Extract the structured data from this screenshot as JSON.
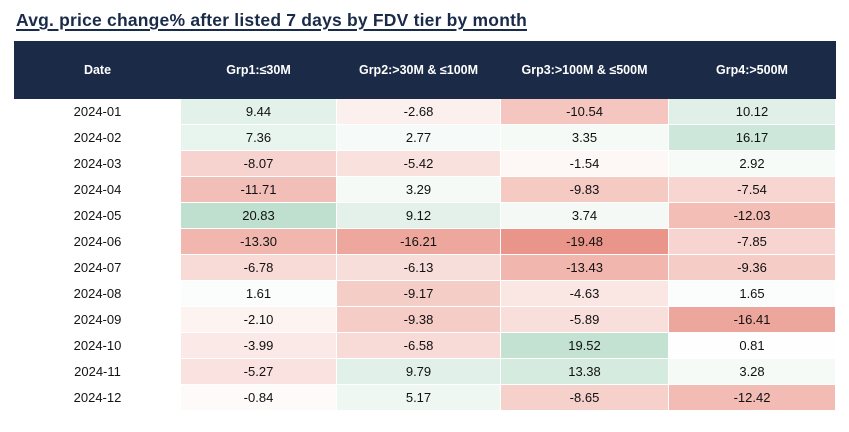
{
  "title": "Avg. price change% after listed 7 days by FDV tier by month",
  "colors": {
    "title_color": "#1a2b49",
    "header_bg": "#1b2a47",
    "header_text": "#ffffff",
    "heat_neutral": "#ffffff",
    "heat_positive_max": "#bfe0cf",
    "heat_negative_max": "#ea9589"
  },
  "chart_data": {
    "type": "heatmap",
    "title": "Avg. price change% after listed 7 days by FDV tier by month",
    "columns": [
      "Date",
      "Grp1:≤30M",
      "Grp2:>30M & ≤100M",
      "Grp3:>100M & ≤500M",
      "Grp4:>500M"
    ],
    "scale": {
      "min": -19.48,
      "max": 20.83,
      "midpoint": 0
    },
    "rows": [
      {
        "date": "2024-01",
        "values": [
          9.44,
          -2.68,
          -10.54,
          10.12
        ]
      },
      {
        "date": "2024-02",
        "values": [
          7.36,
          2.77,
          3.35,
          16.17
        ]
      },
      {
        "date": "2024-03",
        "values": [
          -8.07,
          -5.42,
          -1.54,
          2.92
        ]
      },
      {
        "date": "2024-04",
        "values": [
          -11.71,
          3.29,
          -9.83,
          -7.54
        ]
      },
      {
        "date": "2024-05",
        "values": [
          20.83,
          9.12,
          3.74,
          -12.03
        ]
      },
      {
        "date": "2024-06",
        "values": [
          -13.3,
          -16.21,
          -19.48,
          -7.85
        ]
      },
      {
        "date": "2024-07",
        "values": [
          -6.78,
          -6.13,
          -13.43,
          -9.36
        ]
      },
      {
        "date": "2024-08",
        "values": [
          1.61,
          -9.17,
          -4.63,
          1.65
        ]
      },
      {
        "date": "2024-09",
        "values": [
          -2.1,
          -9.38,
          -5.89,
          -16.41
        ]
      },
      {
        "date": "2024-10",
        "values": [
          -3.99,
          -6.58,
          19.52,
          0.81
        ]
      },
      {
        "date": "2024-11",
        "values": [
          -5.27,
          9.79,
          13.38,
          3.28
        ]
      },
      {
        "date": "2024-12",
        "values": [
          -0.84,
          5.17,
          -8.65,
          -12.42
        ]
      }
    ]
  }
}
